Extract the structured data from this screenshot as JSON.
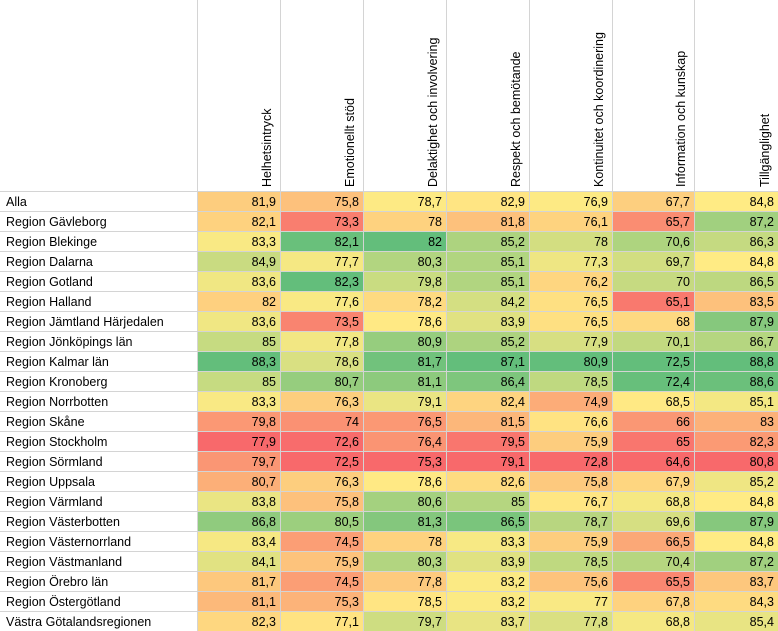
{
  "chart_data": {
    "type": "heatmap",
    "columns": [
      "Helhetsintryck",
      "Emotionellt stöd",
      "Delaktighet och involvering",
      "Respekt och bemötande",
      "Kontinuitet och koordinering",
      "Information och kunskap",
      "Tillgänglighet"
    ],
    "rows": [
      {
        "label": "Alla",
        "values": [
          "81,9",
          "75,8",
          "78,7",
          "82,9",
          "76,9",
          "67,7",
          "84,8"
        ]
      },
      {
        "label": "Region Gävleborg",
        "values": [
          "82,1",
          "73,3",
          "78",
          "81,8",
          "76,1",
          "65,7",
          "87,2"
        ]
      },
      {
        "label": "Region Blekinge",
        "values": [
          "83,3",
          "82,1",
          "82",
          "85,2",
          "78",
          "70,6",
          "86,3"
        ]
      },
      {
        "label": "Region Dalarna",
        "values": [
          "84,9",
          "77,7",
          "80,3",
          "85,1",
          "77,3",
          "69,7",
          "84,8"
        ]
      },
      {
        "label": "Region Gotland",
        "values": [
          "83,6",
          "82,3",
          "79,8",
          "85,1",
          "76,2",
          "70",
          "86,5"
        ]
      },
      {
        "label": "Region Halland",
        "values": [
          "82",
          "77,6",
          "78,2",
          "84,2",
          "76,5",
          "65,1",
          "83,5"
        ]
      },
      {
        "label": "Region Jämtland Härjedalen",
        "values": [
          "83,6",
          "73,5",
          "78,6",
          "83,9",
          "76,5",
          "68",
          "87,9"
        ]
      },
      {
        "label": "Region Jönköpings län",
        "values": [
          "85",
          "77,8",
          "80,9",
          "85,2",
          "77,9",
          "70,1",
          "86,7"
        ]
      },
      {
        "label": "Region Kalmar län",
        "values": [
          "88,3",
          "78,6",
          "81,7",
          "87,1",
          "80,9",
          "72,5",
          "88,8"
        ]
      },
      {
        "label": "Region Kronoberg",
        "values": [
          "85",
          "80,7",
          "81,1",
          "86,4",
          "78,5",
          "72,4",
          "88,6"
        ]
      },
      {
        "label": "Region Norrbotten",
        "values": [
          "83,3",
          "76,3",
          "79,1",
          "82,4",
          "74,9",
          "68,5",
          "85,1"
        ]
      },
      {
        "label": "Region Skåne",
        "values": [
          "79,8",
          "74",
          "76,5",
          "81,5",
          "76,6",
          "66",
          "83"
        ]
      },
      {
        "label": "Region Stockholm",
        "values": [
          "77,9",
          "72,6",
          "76,4",
          "79,5",
          "75,9",
          "65",
          "82,3"
        ]
      },
      {
        "label": "Region Sörmland",
        "values": [
          "79,7",
          "72,5",
          "75,3",
          "79,1",
          "72,8",
          "64,6",
          "80,8"
        ]
      },
      {
        "label": "Region Uppsala",
        "values": [
          "80,7",
          "76,3",
          "78,6",
          "82,6",
          "75,8",
          "67,9",
          "85,2"
        ]
      },
      {
        "label": "Region Värmland",
        "values": [
          "83,8",
          "75,8",
          "80,6",
          "85",
          "76,7",
          "68,8",
          "84,8"
        ]
      },
      {
        "label": "Region Västerbotten",
        "values": [
          "86,8",
          "80,5",
          "81,3",
          "86,5",
          "78,7",
          "69,6",
          "87,9"
        ]
      },
      {
        "label": "Region Västernorrland",
        "values": [
          "83,4",
          "74,5",
          "78",
          "83,3",
          "75,9",
          "66,5",
          "84,8"
        ]
      },
      {
        "label": "Region Västmanland",
        "values": [
          "84,1",
          "75,9",
          "80,3",
          "83,9",
          "78,5",
          "70,4",
          "87,2"
        ]
      },
      {
        "label": "Region Örebro län",
        "values": [
          "81,7",
          "74,5",
          "77,8",
          "83,2",
          "75,6",
          "65,5",
          "83,7"
        ]
      },
      {
        "label": "Region Östergötland",
        "values": [
          "81,1",
          "75,3",
          "78,5",
          "83,2",
          "77",
          "67,8",
          "84,3"
        ]
      },
      {
        "label": "Västra Götalandsregionen",
        "values": [
          "82,3",
          "77,1",
          "79,7",
          "83,7",
          "77,8",
          "68,8",
          "85,4"
        ]
      }
    ],
    "color_scale": {
      "type": "per-column",
      "low": "#f8696b",
      "mid": "#ffeb84",
      "high": "#63be7b"
    },
    "grid": true
  }
}
